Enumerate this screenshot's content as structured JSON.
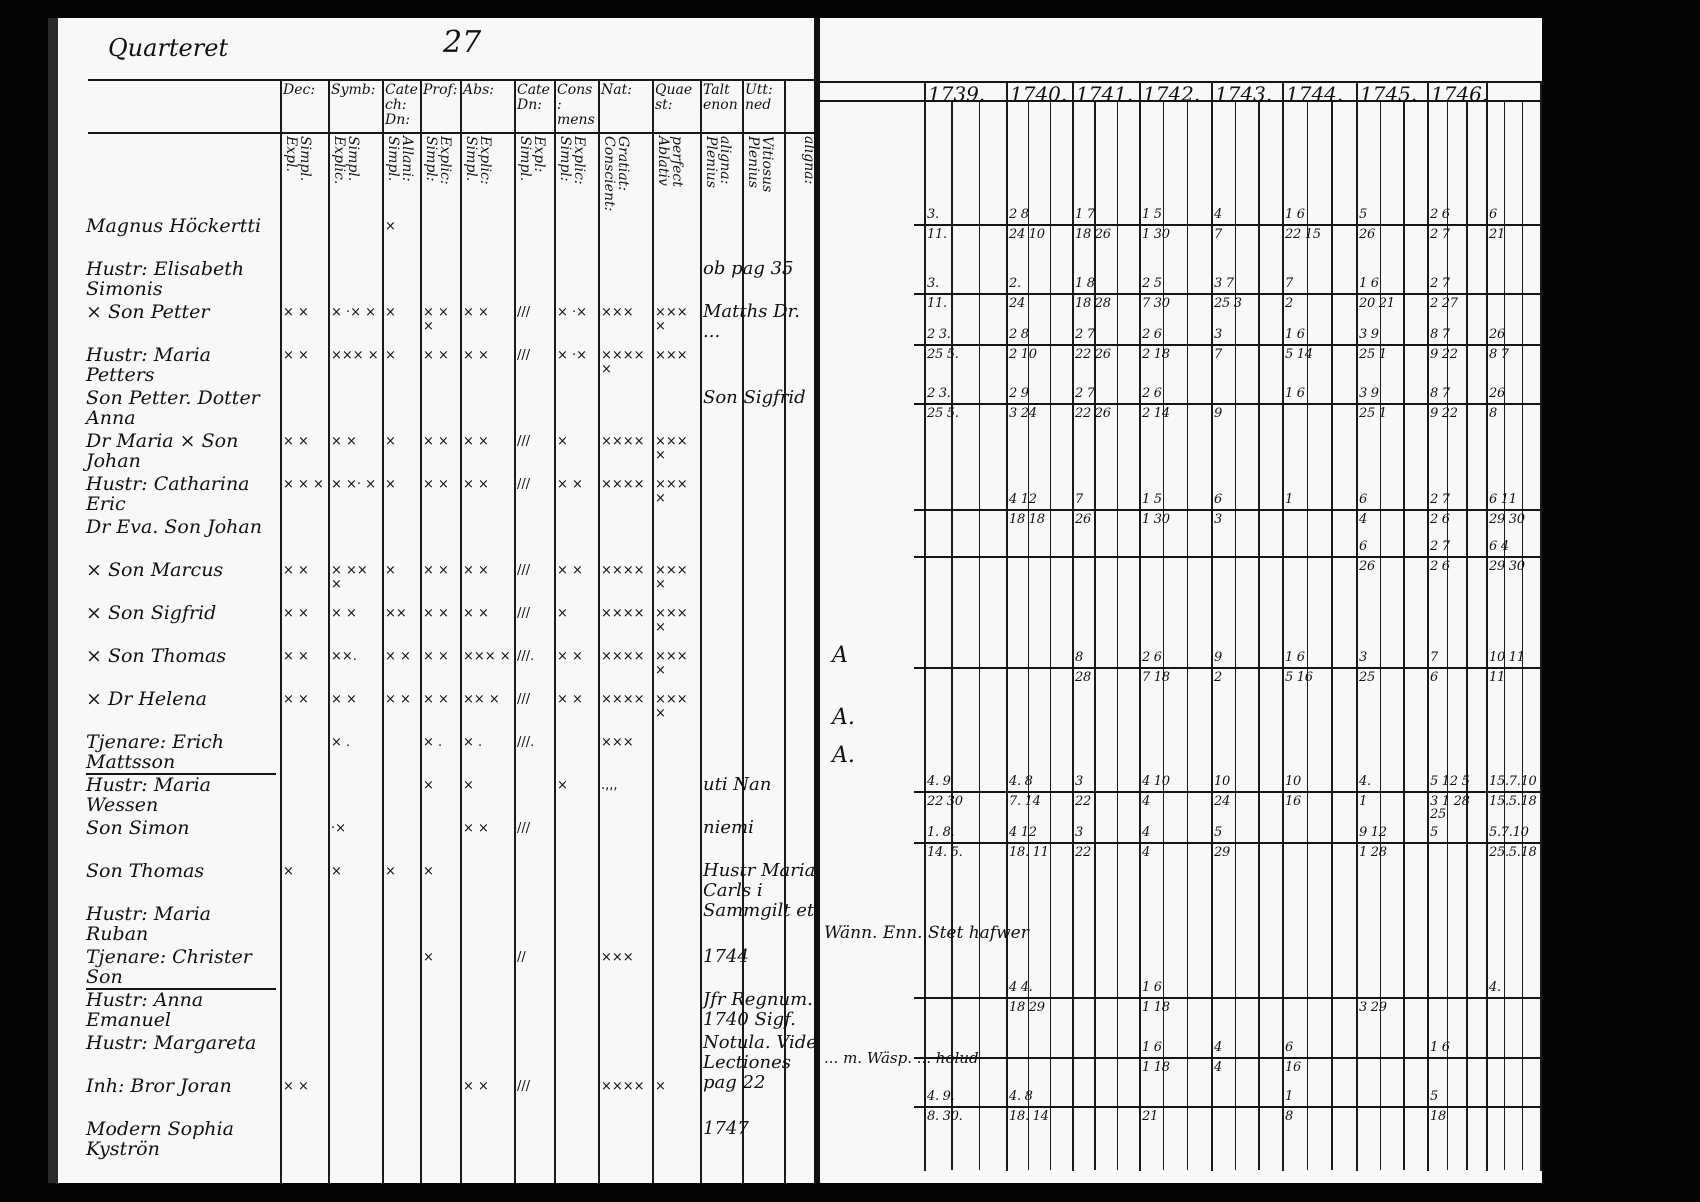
{
  "left_page": {
    "heading": "Quarteret",
    "page_number": "27",
    "column_headers": [
      "Dec:",
      "Symb:",
      "Catech: Dn:",
      "Prof:",
      "Abs:",
      "Cate Dn:",
      "Cons: mens",
      "Nat:",
      "Quaest:",
      "Talt enon",
      "Utt: ned"
    ],
    "column_subheaders": [
      "Simpl. Expl.",
      "Simpl. Explic.",
      "Allani: Simpl.",
      "Explic: Simpl:",
      "Explic: Simpl.",
      "Expl: Simpl.",
      "Explic: Simpl:",
      "Gratiat: Conscient:",
      "perfect Ablativ",
      "aligna: Plenius",
      "Vitiosus Plenius",
      "aligna:"
    ],
    "rows": [
      {
        "name": "Magnus Höckertti",
        "marks": [
          "",
          "",
          "×",
          "",
          "",
          "",
          "",
          "",
          "",
          "",
          ""
        ]
      },
      {
        "name": "Hustr: Elisabeth Simonis",
        "marks": [
          "",
          "",
          "",
          "",
          "",
          "",
          "",
          "",
          "",
          "",
          ""
        ]
      },
      {
        "name": "× Son Petter",
        "marks": [
          "× ×",
          "× ·× ×",
          "×",
          "× × ×",
          "× ×",
          "///",
          "× ·×",
          "×××",
          "××××",
          "",
          ""
        ]
      },
      {
        "name": "Hustr: Maria Petters",
        "marks": [
          "× ×",
          "××× ×",
          "×",
          "× ×",
          "× ×",
          "///",
          "× ·×",
          "×××××",
          "×××",
          "",
          ""
        ]
      },
      {
        "name": "Son Petter. Dotter Anna",
        "marks": [
          "",
          "",
          "",
          "",
          "",
          "",
          "",
          "",
          "",
          "",
          ""
        ]
      },
      {
        "name": "Dr Maria × Son Johan",
        "marks": [
          "× ×",
          "× ×",
          "×",
          "× ×",
          "× ×",
          "///",
          "×",
          "××××",
          "××××",
          "",
          ""
        ]
      },
      {
        "name": "Hustr: Catharina Eric",
        "marks": [
          "× × ×",
          "× ×· ×",
          "×",
          "× ×",
          "× ×",
          "///",
          "× ×",
          "××××",
          "××××",
          "",
          ""
        ]
      },
      {
        "name": "Dr Eva. Son Johan",
        "marks": [
          "",
          "",
          "",
          "",
          "",
          "",
          "",
          "",
          "",
          "",
          ""
        ]
      },
      {
        "name": "× Son Marcus",
        "marks": [
          "× ×",
          "× ×× ×",
          "×",
          "× ×",
          "× ×",
          "///",
          "× ×",
          "××××",
          "××××",
          "",
          ""
        ]
      },
      {
        "name": "× Son Sigfrid",
        "marks": [
          "× ×",
          "× ×",
          "××",
          "× ×",
          "× ×",
          "///",
          "×",
          "××××",
          "××××",
          "",
          ""
        ]
      },
      {
        "name": "× Son Thomas",
        "marks": [
          "× ×",
          "××.",
          "× ×",
          "× ×",
          "××× ×",
          "///.",
          "× ×",
          "××××",
          "××××",
          "",
          ""
        ]
      },
      {
        "name": "× Dr Helena",
        "marks": [
          "× ×",
          "× ×",
          "× ×",
          "× ×",
          "×× ×",
          "///",
          "× ×",
          "××××",
          "××××",
          "",
          ""
        ]
      },
      {
        "name": "Tjenare: Erich Mattsson",
        "marks": [
          "",
          "× .",
          "",
          "× .",
          "× .",
          "///.",
          "",
          "×××",
          "",
          "",
          ""
        ]
      },
      {
        "name": "Hustr: Maria Wessen",
        "marks": [
          "",
          "",
          "",
          "×",
          "×",
          "",
          "×",
          ".,,,",
          "",
          "",
          ""
        ]
      },
      {
        "name": "Son Simon",
        "marks": [
          "",
          "·×",
          "",
          "",
          "× ×",
          "///",
          "",
          "",
          "",
          "",
          ""
        ]
      },
      {
        "name": "Son Thomas",
        "marks": [
          "×",
          "×",
          "×",
          "×",
          "",
          "",
          "",
          "",
          "",
          "",
          ""
        ]
      },
      {
        "name": "Hustr: Maria Ruban",
        "marks": [
          "",
          "",
          "",
          "",
          "",
          "",
          "",
          "",
          "",
          "",
          ""
        ]
      },
      {
        "name": "Tjenare: Christer Son",
        "marks": [
          "",
          "",
          "",
          "×",
          "",
          "//",
          "",
          "×××",
          "",
          "",
          ""
        ]
      },
      {
        "name": "Hustr: Anna Emanuel",
        "marks": [
          "",
          "",
          "",
          "",
          "",
          "",
          "",
          "",
          "",
          "",
          ""
        ]
      },
      {
        "name": "Hustr: Margareta",
        "marks": [
          "",
          "",
          "",
          "",
          "",
          "",
          "",
          "",
          "",
          "",
          ""
        ]
      },
      {
        "name": "Inh: Bror Joran",
        "marks": [
          "× ×",
          "",
          "",
          "",
          "× ×",
          "///",
          "",
          "××××",
          "×",
          "",
          ""
        ]
      },
      {
        "name": "Modern Sophia Kyströn",
        "marks": [
          "",
          "",
          "",
          "",
          "",
          "",
          "",
          "",
          "",
          "",
          ""
        ]
      }
    ],
    "notes": {
      "ob_pag": "ob pag 35",
      "matths": "Matths Dr. ...",
      "son_sigfrid": "Son Sigfrid",
      "uti": "uti Nan",
      "niemi": "niemi",
      "year_1744": "1744",
      "year_1747": "1747",
      "lectiones": "Notula. Vide Lectiones pag 22",
      "maria_carls": "Hustr Maria Carls i Sammgilt et",
      "regnum": "Jfr Regnum. 1740 Sigf."
    }
  },
  "right_page": {
    "years": [
      "1739.",
      "1740.",
      "1741.",
      "1742.",
      "1743.",
      "1744.",
      "1745.",
      "1746."
    ],
    "margin_marks": [
      "A",
      "A.",
      "A."
    ],
    "remark": "Wänn. Enn. Stet hafwer",
    "remark2": "... m. Wäsp. ... holud",
    "entries": [
      {
        "top": [
          "3.",
          "2 8",
          "1 7",
          "1 5",
          "4",
          "1 6",
          "5",
          "2 6",
          "6"
        ],
        "bottom": [
          "11.",
          "24 10",
          "18 26",
          "1 30",
          "7",
          "22 15",
          "26",
          "2 7",
          "21"
        ]
      },
      {
        "top": [
          "3.",
          "2.",
          "1 8",
          "2 5",
          "3 7",
          "7",
          "1 6",
          "2 7",
          ""
        ],
        "bottom": [
          "11.",
          "24",
          "18 28",
          "7 30",
          "25 3",
          "2",
          "20 21",
          "2 27",
          ""
        ]
      },
      {
        "top": [
          "2 3.",
          "2 8",
          "2 7",
          "2 6",
          "3",
          "1 6",
          "3 9",
          "8 7",
          "26"
        ],
        "bottom": [
          "25 5.",
          "2 10",
          "22 26",
          "2 18",
          "7",
          "5 14",
          "25 1",
          "9 22",
          "8 7"
        ]
      },
      {
        "top": [
          "2 3.",
          "2 9",
          "2 7",
          "2 6",
          "",
          "1 6",
          "3 9",
          "8 7",
          "26"
        ],
        "bottom": [
          "25 5.",
          "3 24",
          "22 26",
          "2 14",
          "9",
          "",
          "25 1",
          "9 22",
          "8"
        ]
      },
      {
        "top": [
          "",
          "4 12",
          "7",
          "1 5",
          "6",
          "1",
          "6",
          "2 7",
          "6 11"
        ],
        "bottom": [
          "",
          "18 18",
          "26",
          "1 30",
          "3",
          "",
          "4",
          "2 6",
          "29 30"
        ]
      },
      {
        "top": [
          "",
          "",
          "",
          "",
          "",
          "",
          "6",
          "2 7",
          "6 4"
        ],
        "bottom": [
          "",
          "",
          "",
          "",
          "",
          "",
          "26",
          "2 6",
          "29 30"
        ]
      },
      {
        "top": [
          "",
          "",
          "8",
          "2 6",
          "9",
          "1 6",
          "3",
          "7",
          "10 11"
        ],
        "bottom": [
          "",
          "",
          "28",
          "7 18",
          "2",
          "5 16",
          "25",
          "6",
          "11"
        ]
      },
      {
        "top": [
          "4. 9",
          "4. 8",
          "3",
          "4 10",
          "10",
          "10",
          "4.",
          "5 12 5",
          "15.7.10"
        ],
        "bottom": [
          "22 30",
          "7. 14",
          "22",
          "4",
          "24",
          "16",
          "1",
          "3 1 28 25",
          "15.5.18"
        ]
      },
      {
        "top": [
          "1. 8.",
          "4 12",
          "3",
          "4",
          "5",
          "",
          "9 12",
          "5",
          "5.7.10"
        ],
        "bottom": [
          "14. 5.",
          "18. 11",
          "22",
          "4",
          "29",
          "",
          "1 28",
          "",
          "25.5.18"
        ]
      },
      {
        "top": [
          "",
          "4 4.",
          "",
          "1 6",
          "",
          "",
          "",
          "",
          "4."
        ],
        "bottom": [
          "",
          "18 29",
          "",
          "1 18",
          "",
          "",
          "3 29",
          "",
          ""
        ]
      },
      {
        "top": [
          "",
          "",
          "",
          "1 6",
          "4",
          "6",
          "",
          "1 6",
          ""
        ],
        "bottom": [
          "",
          "",
          "",
          "1 18",
          "4",
          "16",
          "",
          "",
          ""
        ]
      },
      {
        "top": [
          "4. 9.",
          "4. 8",
          "",
          "",
          "",
          "1",
          "",
          "5",
          ""
        ],
        "bottom": [
          "8. 30.",
          "18. 14",
          "",
          "21",
          "",
          "8",
          "",
          "18",
          ""
        ]
      }
    ]
  }
}
